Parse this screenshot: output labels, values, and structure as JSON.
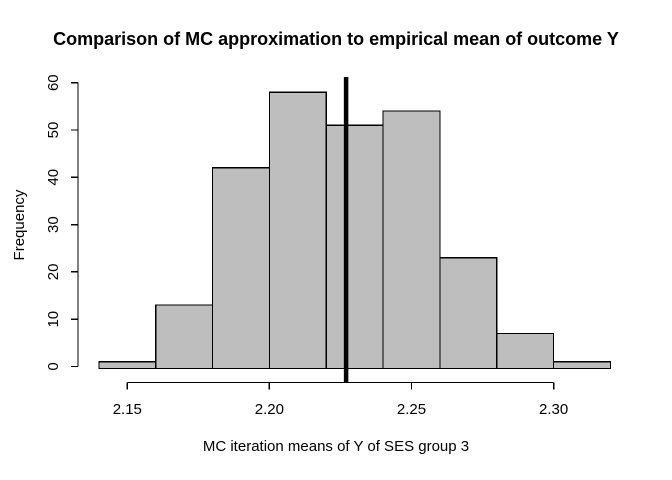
{
  "title": "Comparison of MC approximation to empirical mean of outcome Y",
  "chart_data": {
    "type": "bar",
    "subtype": "histogram",
    "title": "Comparison of MC approximation to empirical mean of outcome Y",
    "xlabel": "MC iteration means of Y of SES group 3",
    "ylabel": "Frequency",
    "bin_breaks": [
      2.14,
      2.16,
      2.18,
      2.2,
      2.22,
      2.24,
      2.26,
      2.28,
      2.3,
      2.32
    ],
    "counts": [
      1,
      13,
      42,
      58,
      51,
      54,
      23,
      7,
      1
    ],
    "x_ticks": [
      2.15,
      2.2,
      2.25,
      2.3
    ],
    "x_tick_labels": [
      "2.15",
      "2.20",
      "2.25",
      "2.30"
    ],
    "y_ticks": [
      0,
      10,
      20,
      30,
      40,
      50,
      60
    ],
    "y_tick_labels": [
      "0",
      "10",
      "20",
      "30",
      "40",
      "50",
      "60"
    ],
    "xlim": [
      2.14,
      2.32
    ],
    "ylim": [
      0,
      60
    ],
    "vline_x": 2.227,
    "grid": false,
    "legend": null,
    "colors": {
      "bar_fill": "#BEBEBE",
      "bar_stroke": "#000000",
      "axis": "#000000",
      "vline": "#000000",
      "background": "#FFFFFF",
      "text": "#000000"
    }
  }
}
